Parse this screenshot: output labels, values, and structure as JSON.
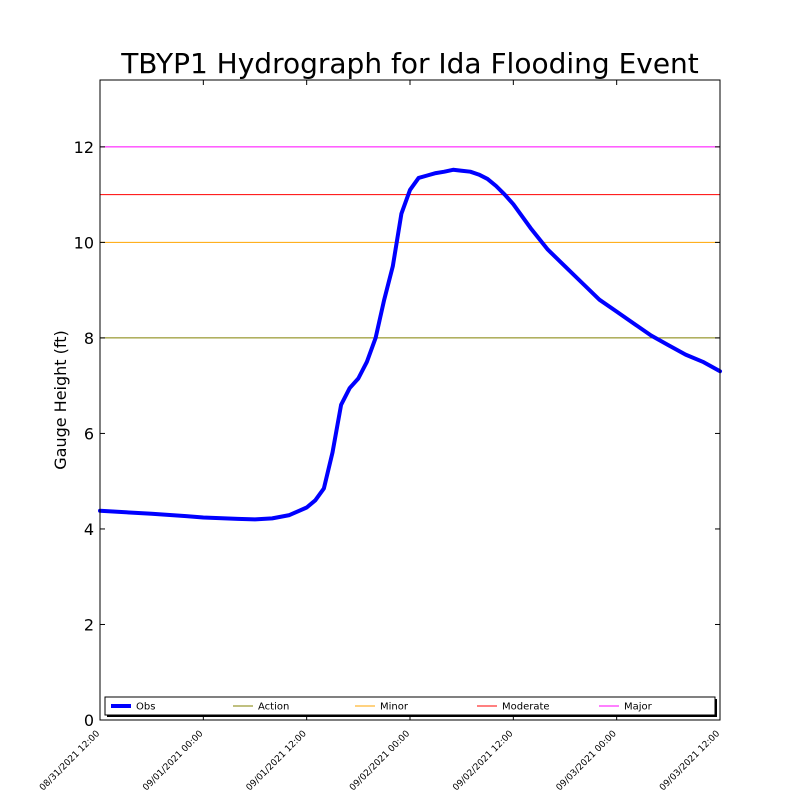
{
  "chart_data": {
    "type": "line",
    "title": "TBYP1 Hydrograph for Ida Flooding Event",
    "xlabel": "",
    "ylabel": "Gauge Height (ft)",
    "ylim": [
      0,
      13.4
    ],
    "yticks": [
      0,
      2,
      4,
      6,
      8,
      10,
      12
    ],
    "xlim": [
      "08/31/2021 12:00",
      "09/03/2021 12:00"
    ],
    "xtick_labels": [
      "08/31/2021 12:00",
      "09/01/2021 00:00",
      "09/01/2021 12:00",
      "09/02/2021 00:00",
      "09/02/2021 12:00",
      "09/03/2021 00:00",
      "09/03/2021 12:00"
    ],
    "grid": false,
    "legend_position": "bottom",
    "series": [
      {
        "name": "Obs",
        "color": "#0000ff",
        "x": [
          "08/31/2021 12:00",
          "08/31/2021 14:00",
          "08/31/2021 18:00",
          "08/31/2021 22:00",
          "09/01/2021 00:00",
          "09/01/2021 04:00",
          "09/01/2021 06:00",
          "09/01/2021 08:00",
          "09/01/2021 10:00",
          "09/01/2021 12:00",
          "09/01/2021 13:00",
          "09/01/2021 14:00",
          "09/01/2021 15:00",
          "09/01/2021 16:00",
          "09/01/2021 17:00",
          "09/01/2021 18:00",
          "09/01/2021 19:00",
          "09/01/2021 20:00",
          "09/01/2021 21:00",
          "09/01/2021 22:00",
          "09/01/2021 23:00",
          "09/02/2021 00:00",
          "09/02/2021 01:00",
          "09/02/2021 02:00",
          "09/02/2021 03:00",
          "09/02/2021 04:00",
          "09/02/2021 05:00",
          "09/02/2021 06:00",
          "09/02/2021 07:00",
          "09/02/2021 08:00",
          "09/02/2021 09:00",
          "09/02/2021 10:00",
          "09/02/2021 11:00",
          "09/02/2021 12:00",
          "09/02/2021 14:00",
          "09/02/2021 16:00",
          "09/02/2021 18:00",
          "09/02/2021 20:00",
          "09/02/2021 22:00",
          "09/03/2021 00:00",
          "09/03/2021 02:00",
          "09/03/2021 04:00",
          "09/03/2021 06:00",
          "09/03/2021 08:00",
          "09/03/2021 10:00",
          "09/03/2021 12:00"
        ],
        "values": [
          4.38,
          4.36,
          4.32,
          4.27,
          4.24,
          4.21,
          4.2,
          4.22,
          4.29,
          4.45,
          4.6,
          4.85,
          5.6,
          6.6,
          6.95,
          7.15,
          7.5,
          8.0,
          8.8,
          9.5,
          10.6,
          11.1,
          11.35,
          11.4,
          11.45,
          11.48,
          11.52,
          11.5,
          11.48,
          11.42,
          11.33,
          11.18,
          11.0,
          10.8,
          10.3,
          9.85,
          9.5,
          9.15,
          8.8,
          8.55,
          8.3,
          8.05,
          7.85,
          7.65,
          7.5,
          7.3
        ]
      }
    ],
    "thresholds": [
      {
        "name": "Action",
        "value": 8,
        "color": "#808000"
      },
      {
        "name": "Minor",
        "value": 10,
        "color": "#ffa500"
      },
      {
        "name": "Moderate",
        "value": 11,
        "color": "#ff0000"
      },
      {
        "name": "Major",
        "value": 12,
        "color": "#ff00ff"
      }
    ]
  }
}
